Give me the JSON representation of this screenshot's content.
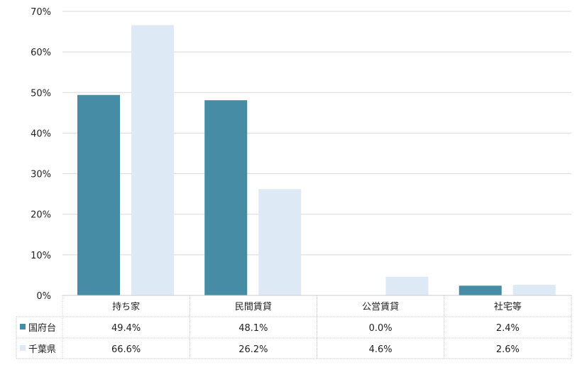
{
  "chart_data": {
    "type": "bar",
    "categories": [
      "持ち家",
      "民間賃貸",
      "公営賃貸",
      "社宅等"
    ],
    "series": [
      {
        "name": "国府台",
        "values": [
          49.4,
          48.1,
          0.0,
          2.4
        ],
        "labels": [
          "49.4%",
          "48.1%",
          "0.0%",
          "2.4%"
        ],
        "color": "#458ca4"
      },
      {
        "name": "千葉県",
        "values": [
          66.6,
          26.2,
          4.6,
          2.6
        ],
        "labels": [
          "66.6%",
          "26.2%",
          "4.6%",
          "2.6%"
        ],
        "color": "#dde9f5"
      }
    ],
    "ylim": [
      0,
      70
    ],
    "yticks": [
      "0%",
      "10%",
      "20%",
      "30%",
      "40%",
      "50%",
      "60%",
      "70%"
    ],
    "grid": true,
    "legend": "data-table"
  }
}
